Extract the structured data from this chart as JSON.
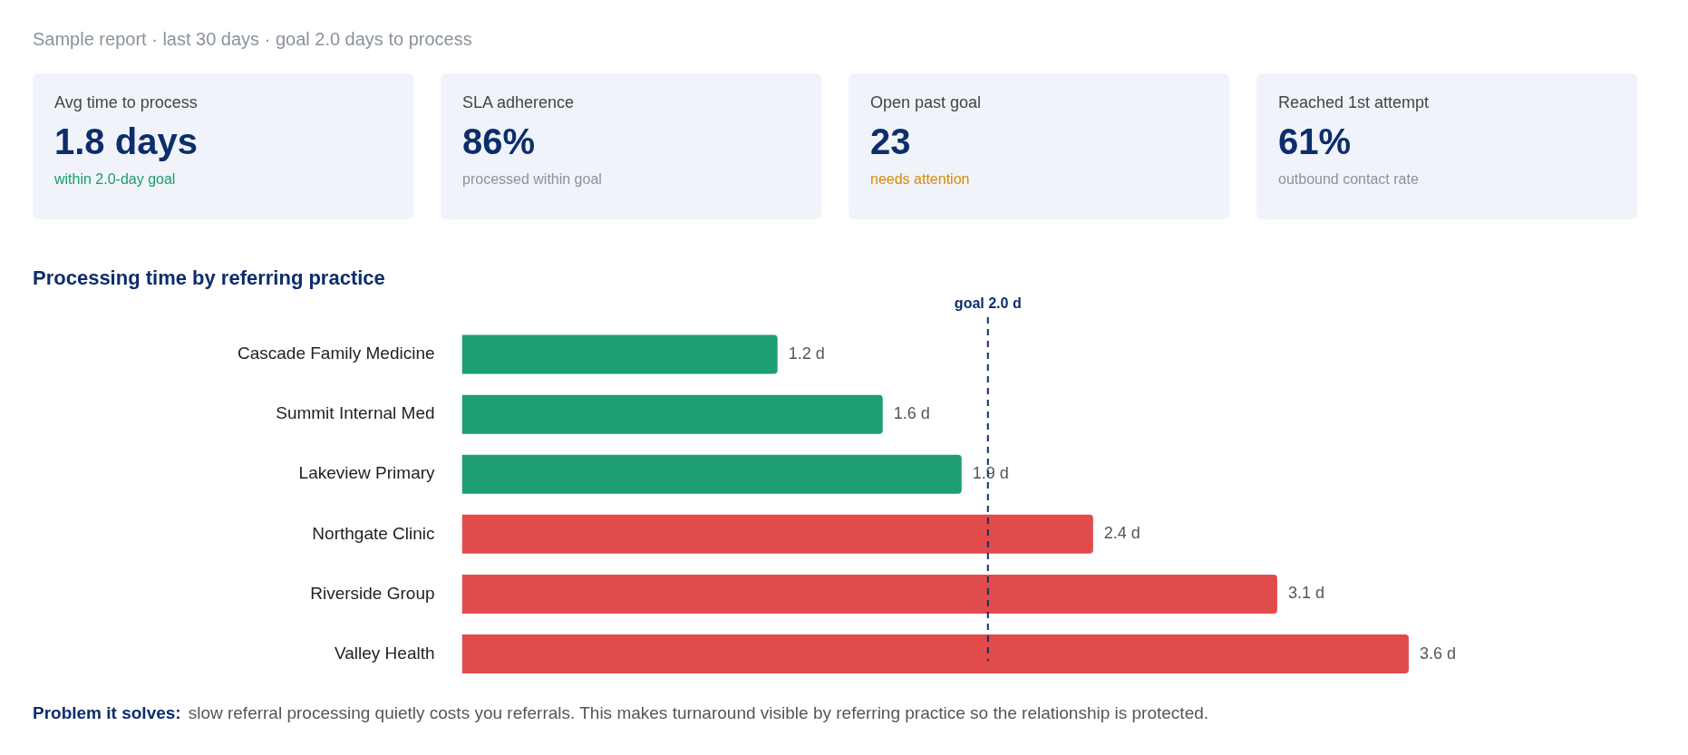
{
  "chart_data": [
    {
      "type": "other",
      "title": "Sample report · last 30 days · goal 2.0 days to process",
      "categories": [
        "Avg time to process",
        "SLA adherence",
        "Open past goal",
        "Reached 1st attempt"
      ],
      "value_labels": [
        "1.8 days",
        "86%",
        "23",
        "61%"
      ],
      "annotations": [
        "within 2.0-day goal",
        "processed within goal",
        "needs attention",
        "outbound contact rate"
      ]
    },
    {
      "type": "bar",
      "orientation": "horizontal",
      "title": "Processing time by referring practice",
      "categories": [
        "Cascade Family Medicine",
        "Summit Internal Med",
        "Lakeview Primary",
        "Northgate Clinic",
        "Riverside Group",
        "Valley Health"
      ],
      "values": [
        1.2,
        1.6,
        1.9,
        2.4,
        3.1,
        3.6
      ],
      "colors": [
        "#1e9e74",
        "#1e9e74",
        "#1e9e74",
        "#e24b4b",
        "#e24b4b",
        "#e24b4b"
      ],
      "value_labels": [
        "1.2 d",
        "1.6 d",
        "1.9 d",
        "2.4 d",
        "3.1 d",
        "3.6 d"
      ],
      "ref_lines": [
        {
          "axis": "x",
          "value": 2.0,
          "label": "goal 2.0 d",
          "color": "#0d2d6b",
          "line_style": "dashed"
        }
      ],
      "annotations": [
        "Problem it solves:",
        "slow referral processing quietly costs you referrals. This makes turnaround visible by referring practice so the relationship is protected."
      ],
      "tick_labels": "y"
    }
  ]
}
